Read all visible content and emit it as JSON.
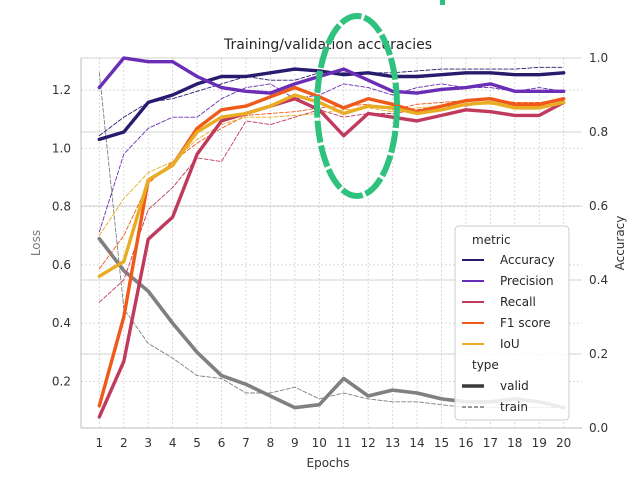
{
  "chart_data": {
    "type": "line",
    "title": "Training/validation accuracies",
    "xlabel": "Epochs",
    "ylabel_left": "Loss",
    "ylabel_right": "Accuracy",
    "x": [
      1,
      2,
      3,
      4,
      5,
      6,
      7,
      8,
      9,
      10,
      11,
      12,
      13,
      14,
      15,
      16,
      17,
      18,
      19,
      20
    ],
    "x_ticks": [
      "1",
      "2",
      "3",
      "4",
      "5",
      "6",
      "7",
      "8",
      "9",
      "10",
      "11",
      "12",
      "13",
      "14",
      "15",
      "16",
      "17",
      "18",
      "19",
      "20"
    ],
    "xlim": [
      0.25,
      20.75
    ],
    "ylim_left": [
      0.04,
      1.31
    ],
    "yticks_left": [
      0.2,
      0.4,
      0.6,
      0.8,
      1.0,
      1.2
    ],
    "ytick_labels_left": [
      "0.2",
      "0.4",
      "0.6",
      "0.8",
      "1.0",
      "1.2"
    ],
    "ylim_right": [
      0.0,
      1.0
    ],
    "yticks_right": [
      0.0,
      0.2,
      0.4,
      0.6,
      0.8,
      1.0
    ],
    "ytick_labels_right": [
      "0.0",
      "0.2",
      "0.4",
      "0.6",
      "0.8",
      "1.0"
    ],
    "grid": true,
    "legend_position": "bottom-right",
    "loss_series": [
      {
        "name": "valid",
        "color": "#808080",
        "style": "solid",
        "values": [
          0.69,
          0.58,
          0.51,
          0.4,
          0.3,
          0.22,
          0.19,
          0.15,
          0.11,
          0.12,
          0.21,
          0.15,
          0.17,
          0.16,
          0.14,
          0.13,
          0.13,
          0.14,
          0.13,
          0.11
        ]
      },
      {
        "name": "train",
        "color": "#808080",
        "style": "dashed",
        "values": [
          1.26,
          0.45,
          0.33,
          0.28,
          0.22,
          0.21,
          0.16,
          0.16,
          0.18,
          0.14,
          0.16,
          0.14,
          0.13,
          0.13,
          0.12,
          0.11,
          0.11,
          0.11,
          0.11,
          0.11
        ]
      }
    ],
    "series": [
      {
        "name": "Accuracy",
        "metric": "Accuracy",
        "type": "valid",
        "color": "#271b6e",
        "style": "solid",
        "values": [
          0.78,
          0.8,
          0.88,
          0.9,
          0.93,
          0.95,
          0.95,
          0.96,
          0.97,
          0.965,
          0.955,
          0.96,
          0.95,
          0.95,
          0.955,
          0.96,
          0.96,
          0.955,
          0.955,
          0.96
        ]
      },
      {
        "name": "Precision",
        "metric": "Precision",
        "type": "valid",
        "color": "#6a2db6",
        "style": "solid",
        "values": [
          0.92,
          1.0,
          0.99,
          0.99,
          0.95,
          0.92,
          0.91,
          0.905,
          0.93,
          0.95,
          0.97,
          0.94,
          0.91,
          0.905,
          0.915,
          0.92,
          0.93,
          0.91,
          0.91,
          0.91
        ]
      },
      {
        "name": "Recall",
        "metric": "Recall",
        "type": "valid",
        "color": "#c03a5e",
        "style": "solid",
        "values": [
          0.03,
          0.18,
          0.51,
          0.57,
          0.74,
          0.83,
          0.85,
          0.87,
          0.89,
          0.86,
          0.79,
          0.85,
          0.84,
          0.83,
          0.845,
          0.86,
          0.855,
          0.845,
          0.845,
          0.88
        ]
      },
      {
        "name": "F1 score",
        "metric": "F1 score",
        "type": "valid",
        "color": "#ef5a1a",
        "style": "solid",
        "values": [
          0.06,
          0.3,
          0.67,
          0.71,
          0.81,
          0.86,
          0.87,
          0.895,
          0.92,
          0.895,
          0.865,
          0.89,
          0.875,
          0.855,
          0.87,
          0.885,
          0.89,
          0.875,
          0.875,
          0.89
        ]
      },
      {
        "name": "IoU",
        "metric": "IoU",
        "type": "valid",
        "color": "#e9ad23",
        "style": "solid",
        "values": [
          0.41,
          0.45,
          0.67,
          0.71,
          0.8,
          0.84,
          0.85,
          0.87,
          0.9,
          0.88,
          0.85,
          0.87,
          0.865,
          0.85,
          0.86,
          0.875,
          0.88,
          0.865,
          0.865,
          0.88
        ]
      },
      {
        "name": "Accuracy",
        "metric": "Accuracy",
        "type": "train",
        "color": "#271b6e",
        "style": "dashed",
        "values": [
          0.79,
          0.84,
          0.88,
          0.89,
          0.91,
          0.93,
          0.95,
          0.94,
          0.94,
          0.96,
          0.96,
          0.96,
          0.96,
          0.965,
          0.97,
          0.97,
          0.97,
          0.97,
          0.975,
          0.975
        ]
      },
      {
        "name": "Precision",
        "metric": "Precision",
        "type": "train",
        "color": "#6a2db6",
        "style": "dashed",
        "values": [
          0.53,
          0.74,
          0.81,
          0.84,
          0.84,
          0.89,
          0.92,
          0.93,
          0.89,
          0.9,
          0.93,
          0.92,
          0.9,
          0.92,
          0.93,
          0.92,
          0.92,
          0.91,
          0.92,
          0.91
        ]
      },
      {
        "name": "Recall",
        "metric": "Recall",
        "type": "train",
        "color": "#c03a5e",
        "style": "dashed",
        "values": [
          0.34,
          0.4,
          0.59,
          0.65,
          0.73,
          0.72,
          0.83,
          0.82,
          0.84,
          0.86,
          0.84,
          0.85,
          0.85,
          0.86,
          0.87,
          0.87,
          0.88,
          0.87,
          0.87,
          0.88
        ]
      },
      {
        "name": "F1 score",
        "metric": "F1 score",
        "type": "train",
        "color": "#ef5a1a",
        "style": "dashed",
        "values": [
          0.43,
          0.52,
          0.66,
          0.72,
          0.77,
          0.81,
          0.845,
          0.85,
          0.855,
          0.865,
          0.87,
          0.875,
          0.86,
          0.875,
          0.88,
          0.885,
          0.89,
          0.88,
          0.88,
          0.885
        ]
      },
      {
        "name": "IoU",
        "metric": "IoU",
        "type": "train",
        "color": "#e9ad23",
        "style": "dashed",
        "values": [
          0.52,
          0.62,
          0.69,
          0.72,
          0.78,
          0.82,
          0.84,
          0.84,
          0.845,
          0.85,
          0.86,
          0.865,
          0.855,
          0.865,
          0.87,
          0.875,
          0.875,
          0.87,
          0.87,
          0.875
        ]
      }
    ],
    "legend": {
      "metric_title": "metric",
      "metric_entries": [
        {
          "label": "Accuracy",
          "color": "#271b6e"
        },
        {
          "label": "Precision",
          "color": "#6a2db6"
        },
        {
          "label": "Recall",
          "color": "#c03a5e"
        },
        {
          "label": "F1 score",
          "color": "#ef5a1a"
        },
        {
          "label": "IoU",
          "color": "#e9ad23"
        }
      ],
      "type_title": "type",
      "type_entries": [
        {
          "label": "valid",
          "style": "solid",
          "color": "#3a3a3a"
        },
        {
          "label": "train",
          "style": "dashed",
          "color": "#3a3a3a"
        }
      ]
    },
    "highlight_color": "#2ec27e"
  }
}
